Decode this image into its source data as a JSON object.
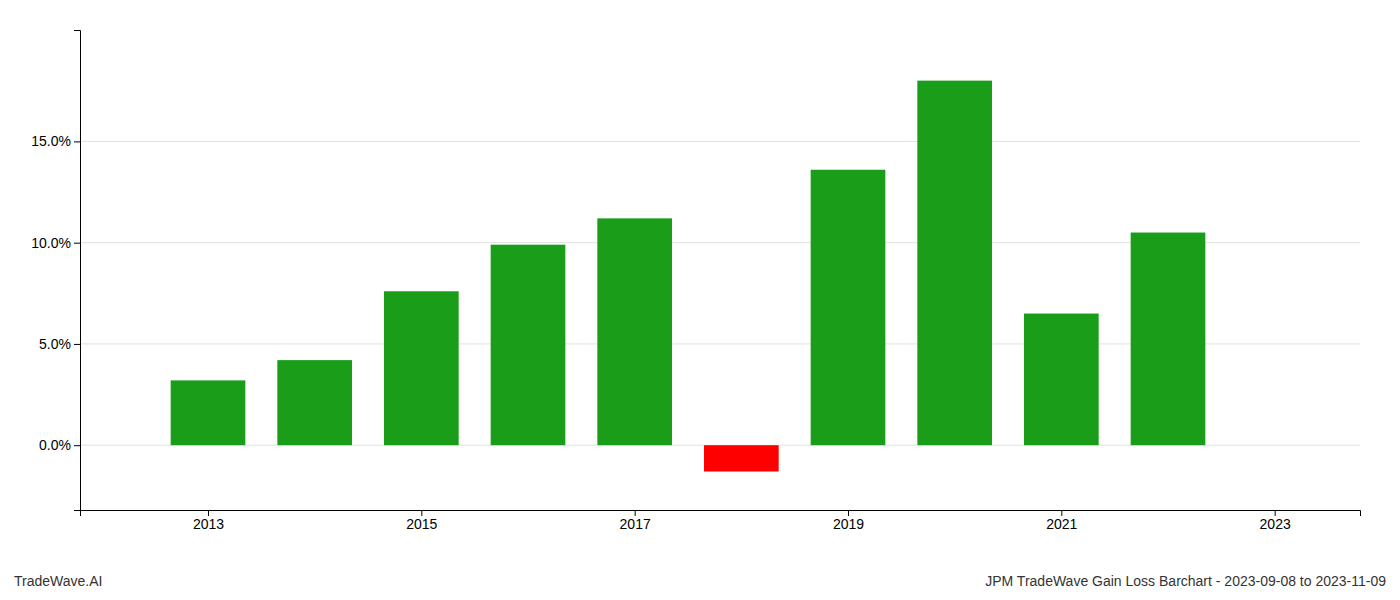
{
  "chart_data": {
    "type": "bar",
    "title": "JPM TradeWave Gain Loss Barchart - 2023-09-08 to 2023-11-09",
    "annotations": [
      "TradeWave.AI"
    ],
    "x": [
      2013,
      2014,
      2015,
      2016,
      2017,
      2018,
      2019,
      2020,
      2021,
      2022
    ],
    "values": [
      0.032,
      0.042,
      0.076,
      0.099,
      0.112,
      -0.013,
      0.136,
      0.18,
      0.065,
      0.105
    ],
    "colors": [
      "#1a9e1a",
      "#1a9e1a",
      "#1a9e1a",
      "#1a9e1a",
      "#1a9e1a",
      "#ff0000",
      "#1a9e1a",
      "#1a9e1a",
      "#1a9e1a",
      "#1a9e1a"
    ],
    "xlim": [
      2011.8,
      2023.8
    ],
    "xticks": [
      2013,
      2015,
      2017,
      2019,
      2021,
      2023
    ],
    "ylim": [
      -0.032,
      0.205
    ],
    "yticks": [
      {
        "value": 0.0,
        "label": "0.0%"
      },
      {
        "value": 0.05,
        "label": "5.0%"
      },
      {
        "value": 0.1,
        "label": "10.0%"
      },
      {
        "value": 0.15,
        "label": "15.0%"
      }
    ],
    "grid": true
  }
}
